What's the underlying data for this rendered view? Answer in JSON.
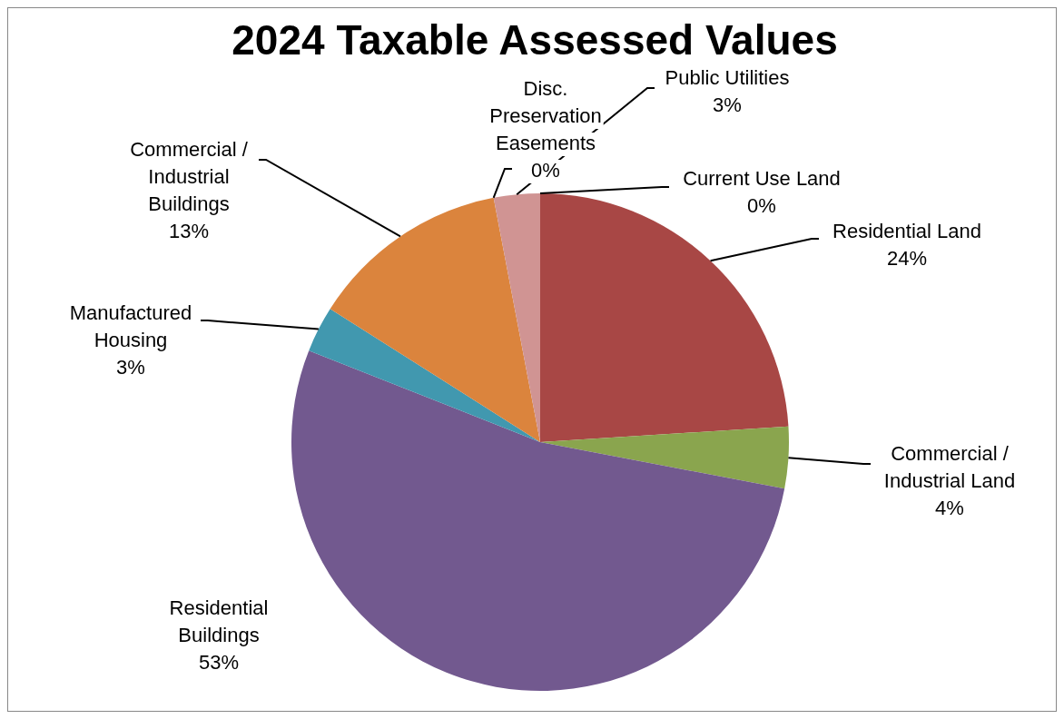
{
  "chart_data": {
    "type": "pie",
    "title": "2024 Taxable Assessed Values",
    "categories": [
      "Current Use Land",
      "Residential Land",
      "Commercial / Industrial Land",
      "Residential Buildings",
      "Manufactured Housing",
      "Commercial / Industrial Buildings",
      "Disc. Preservation Easements",
      "Public Utilities"
    ],
    "values": [
      0,
      24,
      4,
      53,
      3,
      13,
      0,
      3
    ],
    "value_labels": [
      "0%",
      "24%",
      "4%",
      "53%",
      "3%",
      "13%",
      "0%",
      "3%"
    ],
    "colors": [
      "#4f81bd",
      "#a84745",
      "#8aa54e",
      "#72598f",
      "#4198af",
      "#db843d",
      "#93a9cf",
      "#d09493"
    ],
    "legend": false
  }
}
